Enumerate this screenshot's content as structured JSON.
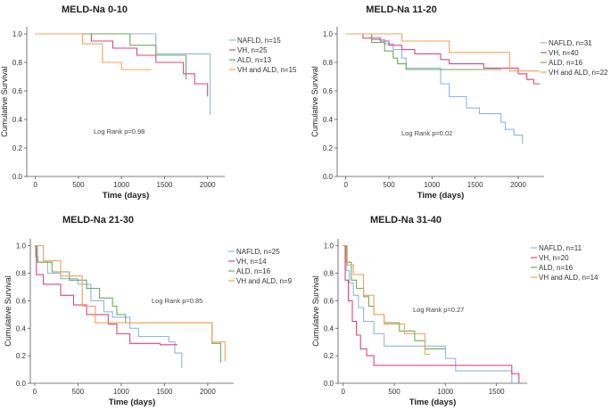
{
  "colors": {
    "NAFLD": "#8fb6e8",
    "VH": "#e0457b",
    "ALD": "#6faa5a",
    "VH and ALD": "#f5a15a"
  },
  "chart_data": [
    {
      "type": "line",
      "title": "MELD-Na 0-10",
      "xlabel": "Time (days)",
      "ylabel": "Cumulative Survival",
      "xlim": [
        -100,
        2200
      ],
      "ylim": [
        0,
        1.05
      ],
      "xticks": [
        0,
        500,
        1000,
        1500,
        2000
      ],
      "yticks": [
        0.0,
        0.2,
        0.4,
        0.6,
        0.8,
        1.0
      ],
      "grid": false,
      "legend_position": "right",
      "annotation": "Log Rank p=0.98",
      "series": [
        {
          "name": "NAFLD",
          "legend": "NAFLD, n=15",
          "x": [
            0,
            1400,
            1400,
            2030,
            2030
          ],
          "y": [
            1.0,
            1.0,
            0.86,
            0.86,
            0.43
          ]
        },
        {
          "name": "VH",
          "legend": "VH, n=25",
          "x": [
            0,
            650,
            650,
            900,
            900,
            1180,
            1180,
            1400,
            1400,
            1720,
            1720,
            1850,
            1850,
            2000,
            2000
          ],
          "y": [
            1.0,
            1.0,
            0.95,
            0.95,
            0.9,
            0.9,
            0.85,
            0.85,
            0.8,
            0.8,
            0.72,
            0.72,
            0.65,
            0.65,
            0.56
          ]
        },
        {
          "name": "ALD",
          "legend": "ALD, n=13",
          "x": [
            0,
            1100,
            1100,
            1400,
            1400,
            1750,
            1750
          ],
          "y": [
            1.0,
            1.0,
            0.92,
            0.92,
            0.85,
            0.85,
            0.68
          ]
        },
        {
          "name": "VH and ALD",
          "legend": "VH and ALD, n=15",
          "x": [
            0,
            550,
            550,
            780,
            780,
            1000,
            1000,
            1350
          ],
          "y": [
            1.0,
            1.0,
            0.93,
            0.93,
            0.8,
            0.8,
            0.75,
            0.75
          ]
        }
      ]
    },
    {
      "type": "line",
      "title": "MELD-Na 11-20",
      "xlabel": "Time (days)",
      "ylabel": "Cumulative Survival",
      "xlim": [
        -100,
        2300
      ],
      "ylim": [
        0,
        1.05
      ],
      "xticks": [
        0,
        500,
        1000,
        1500,
        2000
      ],
      "yticks": [
        0.0,
        0.2,
        0.4,
        0.6,
        0.8,
        1.0
      ],
      "grid": false,
      "legend_position": "right",
      "annotation": "Log Rank p=0.02",
      "series": [
        {
          "name": "NAFLD",
          "legend": "NAFLD, n=31",
          "x": [
            0,
            300,
            300,
            450,
            450,
            550,
            550,
            650,
            650,
            700,
            700,
            1100,
            1100,
            1200,
            1200,
            1400,
            1400,
            1550,
            1550,
            1800,
            1800,
            1850,
            1850,
            1950,
            1950,
            2050,
            2050
          ],
          "y": [
            1.0,
            1.0,
            0.96,
            0.96,
            0.93,
            0.93,
            0.89,
            0.89,
            0.83,
            0.83,
            0.76,
            0.76,
            0.65,
            0.65,
            0.56,
            0.56,
            0.48,
            0.48,
            0.44,
            0.44,
            0.38,
            0.38,
            0.33,
            0.33,
            0.29,
            0.29,
            0.23
          ]
        },
        {
          "name": "VH",
          "legend": "VH, n=40",
          "x": [
            0,
            200,
            200,
            400,
            400,
            500,
            500,
            650,
            650,
            800,
            800,
            1100,
            1100,
            1200,
            1200,
            1600,
            1600,
            2000,
            2000,
            2100,
            2100,
            2180,
            2180,
            2250
          ],
          "y": [
            1.0,
            1.0,
            0.97,
            0.97,
            0.95,
            0.95,
            0.92,
            0.92,
            0.89,
            0.89,
            0.86,
            0.86,
            0.82,
            0.82,
            0.79,
            0.79,
            0.76,
            0.76,
            0.72,
            0.72,
            0.68,
            0.68,
            0.65,
            0.65
          ]
        },
        {
          "name": "ALD",
          "legend": "ALD, n=16",
          "x": [
            0,
            300,
            300,
            450,
            450,
            550,
            550,
            600,
            600,
            700,
            700,
            1150,
            1150,
            1800
          ],
          "y": [
            1.0,
            1.0,
            0.94,
            0.94,
            0.88,
            0.88,
            0.83,
            0.83,
            0.79,
            0.79,
            0.75,
            0.75,
            0.75,
            0.75
          ]
        },
        {
          "name": "VH and ALD",
          "legend": "VH and ALD, n=22",
          "x": [
            0,
            650,
            650,
            1200,
            1200,
            1900,
            1900,
            2250
          ],
          "y": [
            1.0,
            1.0,
            0.95,
            0.95,
            0.87,
            0.87,
            0.74,
            0.74
          ]
        }
      ]
    },
    {
      "type": "line",
      "title": "MELD-Na 21-30",
      "xlabel": "Time (days)",
      "ylabel": "Cumulative Survival",
      "xlim": [
        -50,
        2300
      ],
      "ylim": [
        0,
        1.05
      ],
      "xticks": [
        0,
        500,
        1000,
        1500,
        2000
      ],
      "yticks": [
        0.0,
        0.2,
        0.4,
        0.6,
        0.8,
        1.0
      ],
      "grid": false,
      "legend_position": "right",
      "annotation": "Log Rank p=0.85",
      "series": [
        {
          "name": "NAFLD",
          "legend": "NAFLD, n=25",
          "x": [
            0,
            10,
            10,
            40,
            40,
            150,
            150,
            300,
            300,
            500,
            500,
            650,
            650,
            800,
            800,
            900,
            900,
            1100,
            1100,
            1200,
            1200,
            1550,
            1550,
            1620,
            1620,
            1700,
            1700
          ],
          "y": [
            1.0,
            1.0,
            0.92,
            0.92,
            0.88,
            0.88,
            0.8,
            0.8,
            0.76,
            0.76,
            0.72,
            0.72,
            0.6,
            0.6,
            0.52,
            0.52,
            0.48,
            0.48,
            0.4,
            0.4,
            0.34,
            0.34,
            0.3,
            0.3,
            0.22,
            0.22,
            0.11
          ]
        },
        {
          "name": "VH",
          "legend": "VH, n=14",
          "x": [
            0,
            20,
            20,
            100,
            100,
            300,
            300,
            450,
            450,
            600,
            600,
            850,
            850,
            950,
            950,
            1100,
            1100,
            1450,
            1450,
            1650
          ],
          "y": [
            1.0,
            1.0,
            0.79,
            0.79,
            0.72,
            0.72,
            0.64,
            0.64,
            0.57,
            0.57,
            0.5,
            0.5,
            0.43,
            0.43,
            0.36,
            0.36,
            0.29,
            0.29,
            0.28,
            0.28
          ]
        },
        {
          "name": "ALD",
          "legend": "ALD, n=16",
          "x": [
            0,
            30,
            30,
            200,
            200,
            400,
            400,
            600,
            600,
            750,
            750,
            900,
            900,
            950,
            950,
            1050,
            1050,
            2050,
            2050,
            2150,
            2150
          ],
          "y": [
            1.0,
            1.0,
            0.88,
            0.88,
            0.81,
            0.81,
            0.75,
            0.75,
            0.69,
            0.69,
            0.62,
            0.62,
            0.56,
            0.56,
            0.5,
            0.5,
            0.44,
            0.44,
            0.29,
            0.29,
            0.15
          ]
        },
        {
          "name": "VH and ALD",
          "legend": "VH and ALD, n=9",
          "x": [
            0,
            100,
            100,
            300,
            300,
            550,
            550,
            700,
            700,
            2050,
            2050,
            2200,
            2200
          ],
          "y": [
            1.0,
            1.0,
            0.89,
            0.89,
            0.78,
            0.78,
            0.56,
            0.56,
            0.44,
            0.44,
            0.3,
            0.3,
            0.16
          ]
        }
      ]
    },
    {
      "type": "line",
      "title": "MELD-Na 31-40",
      "xlabel": "Time (days)",
      "ylabel": "Cumulative Survival",
      "xlim": [
        -50,
        1800
      ],
      "ylim": [
        0,
        1.05
      ],
      "xticks": [
        0,
        500,
        1000,
        1500
      ],
      "yticks": [
        0.0,
        0.2,
        0.4,
        0.6,
        0.8,
        1.0
      ],
      "grid": false,
      "legend_position": "right",
      "annotation": "Log Rank p=0.27",
      "series": [
        {
          "name": "NAFLD",
          "legend": "NAFLD, n=11",
          "x": [
            0,
            30,
            30,
            60,
            60,
            100,
            100,
            150,
            150,
            200,
            200,
            300,
            300,
            400,
            400,
            1000,
            1000,
            1100,
            1100,
            1650,
            1650
          ],
          "y": [
            1.0,
            1.0,
            0.82,
            0.82,
            0.73,
            0.73,
            0.64,
            0.64,
            0.55,
            0.55,
            0.45,
            0.45,
            0.36,
            0.36,
            0.27,
            0.27,
            0.18,
            0.18,
            0.09,
            0.09,
            0.0
          ]
        },
        {
          "name": "VH",
          "legend": "VH, n=20",
          "x": [
            0,
            20,
            20,
            50,
            50,
            90,
            90,
            130,
            130,
            170,
            170,
            230,
            230,
            300,
            300,
            1650,
            1650,
            1720,
            1720
          ],
          "y": [
            1.0,
            1.0,
            0.75,
            0.75,
            0.6,
            0.6,
            0.45,
            0.45,
            0.35,
            0.35,
            0.25,
            0.25,
            0.2,
            0.2,
            0.13,
            0.13,
            0.07,
            0.07,
            0.0
          ]
        },
        {
          "name": "ALD",
          "legend": "ALD, n=16",
          "x": [
            0,
            30,
            30,
            80,
            80,
            130,
            130,
            200,
            200,
            250,
            250,
            300,
            300,
            400,
            400,
            550,
            550,
            700,
            700,
            800,
            800,
            1000
          ],
          "y": [
            1.0,
            1.0,
            0.88,
            0.88,
            0.75,
            0.75,
            0.69,
            0.69,
            0.63,
            0.63,
            0.56,
            0.56,
            0.5,
            0.5,
            0.44,
            0.44,
            0.38,
            0.38,
            0.31,
            0.31,
            0.25,
            0.25
          ]
        },
        {
          "name": "VH and ALD",
          "legend": "VH and ALD, n=14",
          "x": [
            0,
            40,
            40,
            100,
            100,
            200,
            200,
            300,
            300,
            400,
            400,
            600,
            600,
            800,
            800,
            850
          ],
          "y": [
            1.0,
            1.0,
            0.86,
            0.86,
            0.79,
            0.79,
            0.64,
            0.64,
            0.5,
            0.5,
            0.43,
            0.43,
            0.36,
            0.36,
            0.21,
            0.21
          ]
        }
      ]
    }
  ]
}
